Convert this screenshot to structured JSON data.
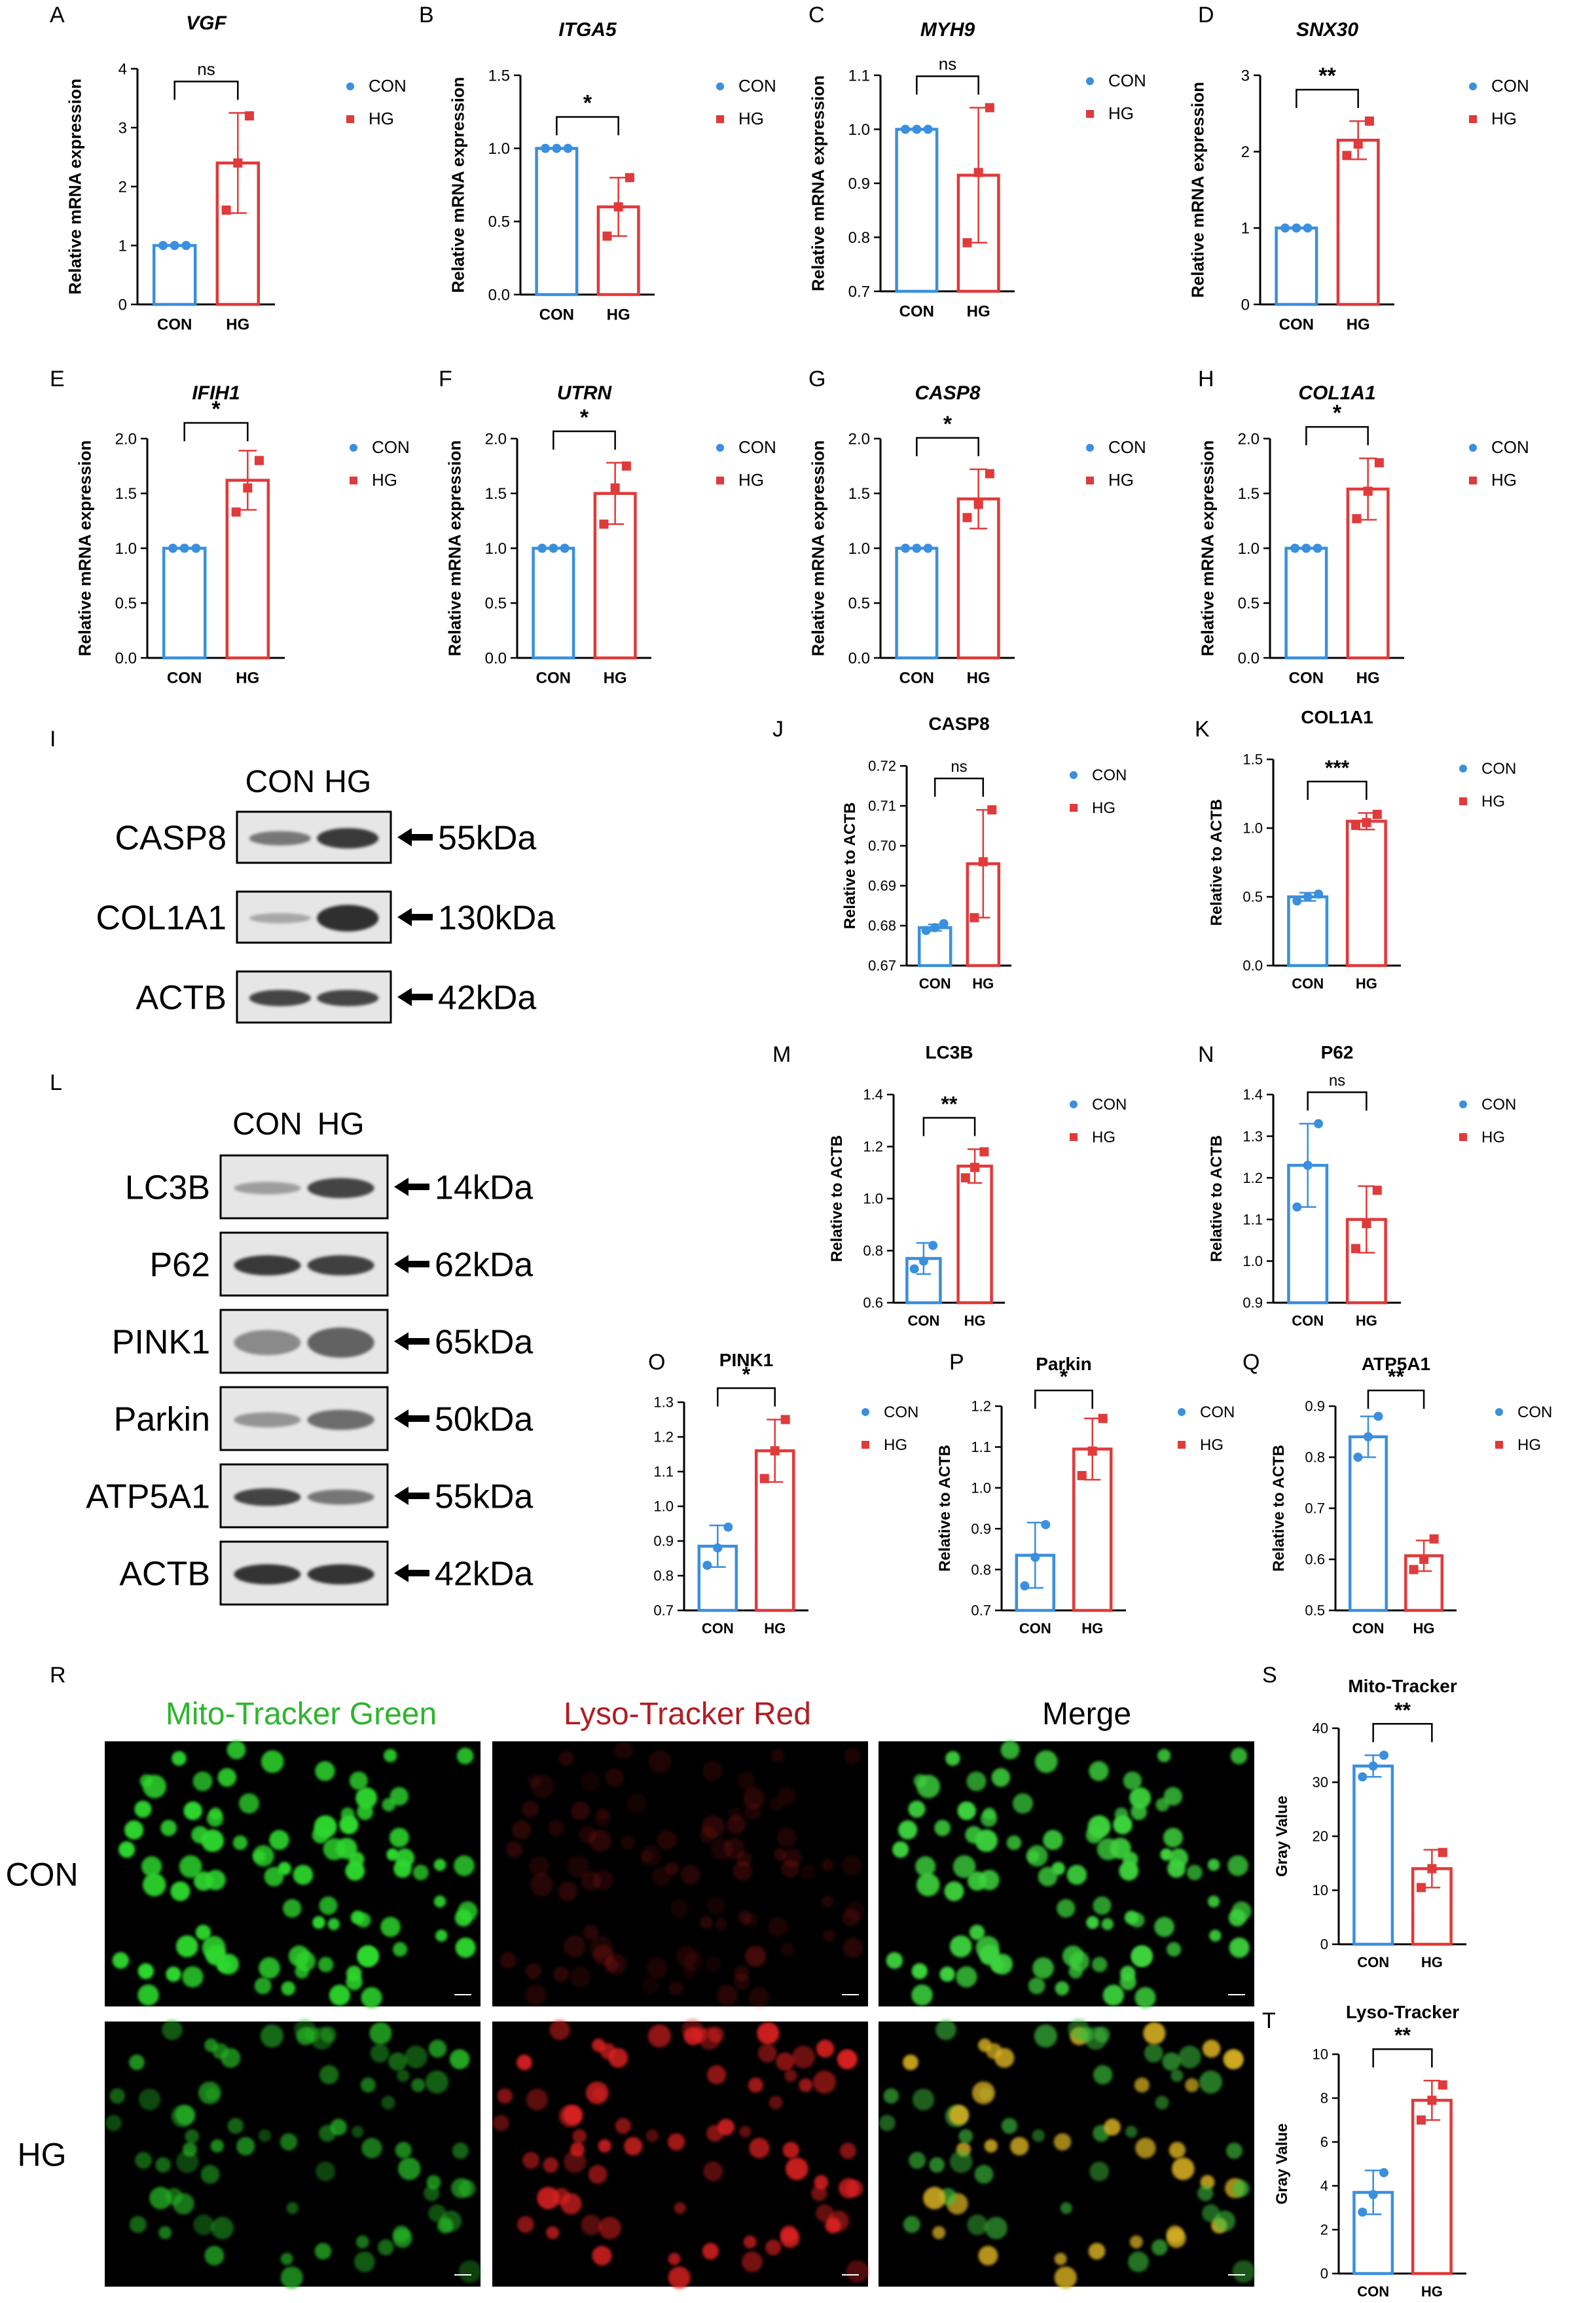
{
  "colors": {
    "con": "#3a8fde",
    "hg": "#e03a3a"
  },
  "legend": {
    "con": "CON",
    "hg": "HG"
  },
  "panel_letters": [
    "A",
    "B",
    "C",
    "D",
    "E",
    "F",
    "G",
    "H",
    "I",
    "J",
    "K",
    "L",
    "M",
    "N",
    "O",
    "P",
    "Q",
    "R",
    "S",
    "T"
  ],
  "chart_data": [
    {
      "id": "A",
      "type": "bar",
      "title": "VGF",
      "italic": true,
      "ylabel": "Relative mRNA expression",
      "categories": [
        "CON",
        "HG"
      ],
      "ylim": [
        0,
        4
      ],
      "yticks": [
        "0",
        "1",
        "2",
        "3",
        "4"
      ],
      "series": [
        {
          "name": "CON",
          "mean": 1.0,
          "sd": 0.0,
          "points": [
            1.0,
            1.0,
            1.0
          ]
        },
        {
          "name": "HG",
          "mean": 2.4,
          "sd": 0.85,
          "points": [
            1.6,
            2.4,
            3.2
          ]
        }
      ],
      "significance": "ns"
    },
    {
      "id": "B",
      "type": "bar",
      "title": "ITGA5",
      "italic": true,
      "ylabel": "Relative mRNA expression",
      "categories": [
        "CON",
        "HG"
      ],
      "ylim": [
        0,
        1.5
      ],
      "yticks": [
        "0.0",
        "0.5",
        "1.0",
        "1.5"
      ],
      "series": [
        {
          "name": "CON",
          "mean": 1.0,
          "sd": 0.0,
          "points": [
            1.0,
            1.0,
            1.0
          ]
        },
        {
          "name": "HG",
          "mean": 0.6,
          "sd": 0.2,
          "points": [
            0.4,
            0.6,
            0.8
          ]
        }
      ],
      "significance": "*"
    },
    {
      "id": "C",
      "type": "bar",
      "title": "MYH9",
      "italic": true,
      "ylabel": "Relative mRNA expression",
      "categories": [
        "CON",
        "HG"
      ],
      "ylim": [
        0.7,
        1.1
      ],
      "yticks": [
        "0.7",
        "0.8",
        "0.9",
        "1.0",
        "1.1"
      ],
      "series": [
        {
          "name": "CON",
          "mean": 1.0,
          "sd": 0.0,
          "points": [
            1.0,
            1.0,
            1.0
          ]
        },
        {
          "name": "HG",
          "mean": 0.915,
          "sd": 0.125,
          "points": [
            0.79,
            0.92,
            1.04
          ]
        }
      ],
      "significance": "ns"
    },
    {
      "id": "D",
      "type": "bar",
      "title": "SNX30",
      "italic": true,
      "ylabel": "Relative mRNA expression",
      "categories": [
        "CON",
        "HG"
      ],
      "ylim": [
        0,
        3
      ],
      "yticks": [
        "0",
        "1",
        "2",
        "3"
      ],
      "series": [
        {
          "name": "CON",
          "mean": 1.0,
          "sd": 0.0,
          "points": [
            1.0,
            1.0,
            1.0
          ]
        },
        {
          "name": "HG",
          "mean": 2.15,
          "sd": 0.25,
          "points": [
            1.95,
            2.1,
            2.4
          ]
        }
      ],
      "significance": "**"
    },
    {
      "id": "E",
      "type": "bar",
      "title": "IFIH1",
      "italic": true,
      "ylabel": "Relative mRNA expression",
      "categories": [
        "CON",
        "HG"
      ],
      "ylim": [
        0,
        2
      ],
      "yticks": [
        "0.0",
        "0.5",
        "1.0",
        "1.5",
        "2.0"
      ],
      "series": [
        {
          "name": "CON",
          "mean": 1.0,
          "sd": 0.0,
          "points": [
            1.0,
            1.0,
            1.0
          ]
        },
        {
          "name": "HG",
          "mean": 1.62,
          "sd": 0.27,
          "points": [
            1.33,
            1.55,
            1.8
          ]
        }
      ],
      "significance": "*"
    },
    {
      "id": "F",
      "type": "bar",
      "title": "UTRN",
      "italic": true,
      "ylabel": "Relative mRNA expression",
      "categories": [
        "CON",
        "HG"
      ],
      "ylim": [
        0,
        2
      ],
      "yticks": [
        "0.0",
        "0.5",
        "1.0",
        "1.5",
        "2.0"
      ],
      "series": [
        {
          "name": "CON",
          "mean": 1.0,
          "sd": 0.0,
          "points": [
            1.0,
            1.0,
            1.0
          ]
        },
        {
          "name": "HG",
          "mean": 1.5,
          "sd": 0.28,
          "points": [
            1.22,
            1.55,
            1.75
          ]
        }
      ],
      "significance": "*"
    },
    {
      "id": "G",
      "type": "bar",
      "title": "CASP8",
      "italic": true,
      "ylabel": "Relative mRNA expression",
      "categories": [
        "CON",
        "HG"
      ],
      "ylim": [
        0,
        2
      ],
      "yticks": [
        "0.0",
        "0.5",
        "1.0",
        "1.5",
        "2.0"
      ],
      "series": [
        {
          "name": "CON",
          "mean": 1.0,
          "sd": 0.0,
          "points": [
            1.0,
            1.0,
            1.0
          ]
        },
        {
          "name": "HG",
          "mean": 1.45,
          "sd": 0.27,
          "points": [
            1.28,
            1.4,
            1.68
          ]
        }
      ],
      "significance": "*"
    },
    {
      "id": "H",
      "type": "bar",
      "title": "COL1A1",
      "italic": true,
      "ylabel": "Relative mRNA expression",
      "categories": [
        "CON",
        "HG"
      ],
      "ylim": [
        0,
        2
      ],
      "yticks": [
        "0.0",
        "0.5",
        "1.0",
        "1.5",
        "2.0"
      ],
      "series": [
        {
          "name": "CON",
          "mean": 1.0,
          "sd": 0.0,
          "points": [
            1.0,
            1.0,
            1.0
          ]
        },
        {
          "name": "HG",
          "mean": 1.54,
          "sd": 0.28,
          "points": [
            1.27,
            1.52,
            1.78
          ]
        }
      ],
      "significance": "*"
    },
    {
      "id": "J",
      "type": "bar",
      "title": "CASP8",
      "italic": false,
      "ylabel": "Relative to ACTB",
      "categories": [
        "CON",
        "HG"
      ],
      "ylim": [
        0.67,
        0.72
      ],
      "yticks": [
        "0.67",
        "0.68",
        "0.69",
        "0.70",
        "0.71",
        "0.72"
      ],
      "series": [
        {
          "name": "CON",
          "mean": 0.6795,
          "sd": 0.0008,
          "points": [
            0.6788,
            0.6795,
            0.6805
          ]
        },
        {
          "name": "HG",
          "mean": 0.6955,
          "sd": 0.0135,
          "points": [
            0.682,
            0.696,
            0.709
          ]
        }
      ],
      "significance": "ns"
    },
    {
      "id": "K",
      "type": "bar",
      "title": "COL1A1",
      "italic": false,
      "ylabel": "Relative to ACTB",
      "categories": [
        "CON",
        "HG"
      ],
      "ylim": [
        0,
        1.5
      ],
      "yticks": [
        "0.0",
        "0.5",
        "1.0",
        "1.5"
      ],
      "series": [
        {
          "name": "CON",
          "mean": 0.5,
          "sd": 0.03,
          "points": [
            0.47,
            0.5,
            0.52
          ]
        },
        {
          "name": "HG",
          "mean": 1.05,
          "sd": 0.06,
          "points": [
            1.02,
            1.04,
            1.1
          ]
        }
      ],
      "significance": "***"
    },
    {
      "id": "M",
      "type": "bar",
      "title": "LC3B",
      "italic": false,
      "ylabel": "Relative to ACTB",
      "categories": [
        "CON",
        "HG"
      ],
      "ylim": [
        0.6,
        1.4
      ],
      "yticks": [
        "0.6",
        "0.8",
        "1.0",
        "1.2",
        "1.4"
      ],
      "series": [
        {
          "name": "CON",
          "mean": 0.77,
          "sd": 0.06,
          "points": [
            0.73,
            0.76,
            0.82
          ]
        },
        {
          "name": "HG",
          "mean": 1.125,
          "sd": 0.065,
          "points": [
            1.08,
            1.12,
            1.18
          ]
        }
      ],
      "significance": "**"
    },
    {
      "id": "N",
      "type": "bar",
      "title": "P62",
      "italic": false,
      "ylabel": "Relative to ACTB",
      "categories": [
        "CON",
        "HG"
      ],
      "ylim": [
        0.9,
        1.4
      ],
      "yticks": [
        "0.9",
        "1.0",
        "1.1",
        "1.2",
        "1.3",
        "1.4"
      ],
      "series": [
        {
          "name": "CON",
          "mean": 1.23,
          "sd": 0.1,
          "points": [
            1.13,
            1.23,
            1.33
          ]
        },
        {
          "name": "HG",
          "mean": 1.1,
          "sd": 0.08,
          "points": [
            1.03,
            1.09,
            1.17
          ]
        }
      ],
      "significance": "ns"
    },
    {
      "id": "O",
      "type": "bar",
      "title": "PINK1",
      "italic": false,
      "ylabel": "",
      "categories": [
        "CON",
        "HG"
      ],
      "ylim": [
        0.7,
        1.3
      ],
      "yticks": [
        "0.7",
        "0.8",
        "0.9",
        "1.0",
        "1.1",
        "1.2",
        "1.3"
      ],
      "series": [
        {
          "name": "CON",
          "mean": 0.885,
          "sd": 0.06,
          "points": [
            0.83,
            0.88,
            0.94
          ]
        },
        {
          "name": "HG",
          "mean": 1.16,
          "sd": 0.09,
          "points": [
            1.08,
            1.16,
            1.25
          ]
        }
      ],
      "significance": "*"
    },
    {
      "id": "P",
      "type": "bar",
      "title": "Parkin",
      "italic": false,
      "ylabel": "Relative to ACTB",
      "categories": [
        "CON",
        "HG"
      ],
      "ylim": [
        0.7,
        1.2
      ],
      "yticks": [
        "0.7",
        "0.8",
        "0.9",
        "1.0",
        "1.1",
        "1.2"
      ],
      "series": [
        {
          "name": "CON",
          "mean": 0.835,
          "sd": 0.08,
          "points": [
            0.76,
            0.83,
            0.91
          ]
        },
        {
          "name": "HG",
          "mean": 1.095,
          "sd": 0.075,
          "points": [
            1.03,
            1.09,
            1.17
          ]
        }
      ],
      "significance": "*"
    },
    {
      "id": "Q",
      "type": "bar",
      "title": "ATP5A1",
      "italic": false,
      "ylabel": "Relative to ACTB",
      "categories": [
        "CON",
        "HG"
      ],
      "ylim": [
        0.5,
        0.9
      ],
      "yticks": [
        "0.5",
        "0.6",
        "0.7",
        "0.8",
        "0.9"
      ],
      "series": [
        {
          "name": "CON",
          "mean": 0.84,
          "sd": 0.04,
          "points": [
            0.8,
            0.84,
            0.88
          ]
        },
        {
          "name": "HG",
          "mean": 0.607,
          "sd": 0.03,
          "points": [
            0.58,
            0.6,
            0.64
          ]
        }
      ],
      "significance": "**"
    },
    {
      "id": "S",
      "type": "bar",
      "title": "Mito-Tracker",
      "italic": false,
      "ylabel": "Gray Value",
      "categories": [
        "CON",
        "HG"
      ],
      "ylim": [
        0,
        40
      ],
      "yticks": [
        "0",
        "10",
        "20",
        "30",
        "40"
      ],
      "series": [
        {
          "name": "CON",
          "mean": 33,
          "sd": 2,
          "points": [
            31,
            33,
            35
          ]
        },
        {
          "name": "HG",
          "mean": 14,
          "sd": 3.5,
          "points": [
            10.5,
            14,
            17
          ]
        }
      ],
      "significance": "**"
    },
    {
      "id": "T",
      "type": "bar",
      "title": "Lyso-Tracker",
      "italic": false,
      "ylabel": "Gray Value",
      "categories": [
        "CON",
        "HG"
      ],
      "ylim": [
        0,
        10
      ],
      "yticks": [
        "0",
        "2",
        "4",
        "6",
        "8",
        "10"
      ],
      "series": [
        {
          "name": "CON",
          "mean": 3.7,
          "sd": 1.0,
          "points": [
            2.8,
            3.6,
            4.6
          ]
        },
        {
          "name": "HG",
          "mean": 7.9,
          "sd": 0.9,
          "points": [
            7.0,
            7.9,
            8.6
          ]
        }
      ],
      "significance": "**"
    }
  ],
  "blot_I": {
    "groups": [
      "CON",
      "HG"
    ],
    "rows": [
      {
        "protein": "CASP8",
        "size": "55kDa"
      },
      {
        "protein": "COL1A1",
        "size": "130kDa"
      },
      {
        "protein": "ACTB",
        "size": "42kDa"
      }
    ]
  },
  "blot_L": {
    "groups": [
      "CON",
      "HG"
    ],
    "rows": [
      {
        "protein": "LC3B",
        "size": "14kDa"
      },
      {
        "protein": "P62",
        "size": "62kDa"
      },
      {
        "protein": "PINK1",
        "size": "65kDa"
      },
      {
        "protein": "Parkin",
        "size": "50kDa"
      },
      {
        "protein": "ATP5A1",
        "size": "55kDa"
      },
      {
        "protein": "ACTB",
        "size": "42kDa"
      }
    ]
  },
  "microscopy": {
    "columns": [
      "Mito-Tracker Green",
      "Lyso-Tracker Red",
      "Merge"
    ],
    "rows": [
      "CON",
      "HG"
    ],
    "column_colors": [
      "#2db52d",
      "#b01e24",
      "#000000"
    ]
  }
}
